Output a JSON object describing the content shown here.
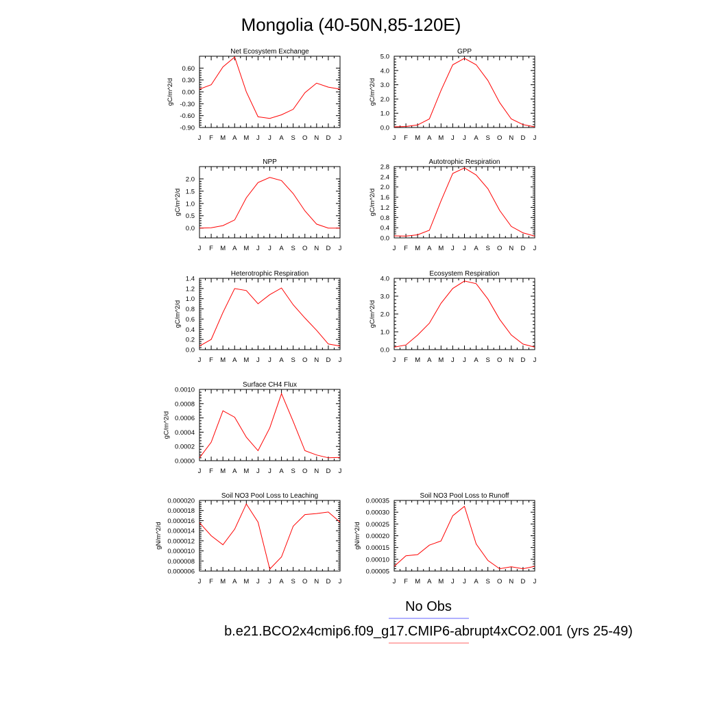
{
  "page": {
    "title": "Mongolia (40-50N,85-120E)"
  },
  "legend": {
    "items": [
      {
        "label": "No Obs",
        "color": "#8080ff"
      },
      {
        "label": "b.e21.BCO2x4cmip6.f09_g17.CMIP6-abrupt4xCO2.001 (yrs 25-49)",
        "color": "#ff8080"
      }
    ]
  },
  "chart_data": [
    {
      "type": "line",
      "title": "Net Ecosystem Exchange",
      "ylabel": "gC/m^2/d",
      "categories": [
        "J",
        "F",
        "M",
        "A",
        "M",
        "J",
        "J",
        "A",
        "S",
        "O",
        "N",
        "D",
        "J"
      ],
      "ylim": [
        -0.9,
        0.9
      ],
      "yticks": [
        -0.9,
        -0.6,
        -0.3,
        0.0,
        0.3,
        0.6
      ],
      "ytick_labels": [
        "-0.90",
        "-0.60",
        "-0.30",
        "0.00",
        "0.30",
        "0.60"
      ],
      "series": [
        {
          "color": "#ff0000",
          "values": [
            0.07,
            0.18,
            0.63,
            0.88,
            0.0,
            -0.63,
            -0.67,
            -0.58,
            -0.44,
            -0.02,
            0.22,
            0.12,
            0.07
          ]
        }
      ]
    },
    {
      "type": "line",
      "title": "GPP",
      "ylabel": "gC/m^2/d",
      "categories": [
        "J",
        "F",
        "M",
        "A",
        "M",
        "J",
        "J",
        "A",
        "S",
        "O",
        "N",
        "D",
        "J"
      ],
      "ylim": [
        0,
        5
      ],
      "yticks": [
        0,
        1,
        2,
        3,
        4,
        5
      ],
      "ytick_labels": [
        "0.0",
        "1.0",
        "2.0",
        "3.0",
        "4.0",
        "5.0"
      ],
      "series": [
        {
          "color": "#ff0000",
          "values": [
            0.05,
            0.07,
            0.18,
            0.6,
            2.6,
            4.4,
            4.85,
            4.4,
            3.3,
            1.75,
            0.6,
            0.2,
            0.05
          ]
        }
      ]
    },
    {
      "type": "line",
      "title": "NPP",
      "ylabel": "gC/m^2/d",
      "categories": [
        "J",
        "F",
        "M",
        "A",
        "M",
        "J",
        "J",
        "A",
        "S",
        "O",
        "N",
        "D",
        "J"
      ],
      "ylim": [
        -0.4,
        2.5
      ],
      "yticks": [
        0,
        0.5,
        1.0,
        1.5,
        2.0
      ],
      "ytick_labels": [
        "0.0",
        "0.5",
        "1.0",
        "1.5",
        "2.0"
      ],
      "series": [
        {
          "color": "#ff0000",
          "values": [
            0.0,
            0.01,
            0.1,
            0.33,
            1.23,
            1.85,
            2.06,
            1.93,
            1.4,
            0.7,
            0.16,
            0.0,
            0.0
          ]
        }
      ]
    },
    {
      "type": "line",
      "title": "Autotrophic Respiration",
      "ylabel": "gC/m^2/d",
      "categories": [
        "J",
        "F",
        "M",
        "A",
        "M",
        "J",
        "J",
        "A",
        "S",
        "O",
        "N",
        "D",
        "J"
      ],
      "ylim": [
        0,
        2.8
      ],
      "yticks": [
        0,
        0.4,
        0.8,
        1.2,
        1.6,
        2.0,
        2.4,
        2.8
      ],
      "ytick_labels": [
        "0.0",
        "0.4",
        "0.8",
        "1.2",
        "1.6",
        "2.0",
        "2.4",
        "2.8"
      ],
      "series": [
        {
          "color": "#ff0000",
          "values": [
            0.08,
            0.07,
            0.12,
            0.3,
            1.45,
            2.53,
            2.75,
            2.47,
            1.93,
            1.08,
            0.45,
            0.2,
            0.07
          ]
        }
      ]
    },
    {
      "type": "line",
      "title": "Heterotrophic Respiration",
      "ylabel": "gC/m^2/d",
      "categories": [
        "J",
        "F",
        "M",
        "A",
        "M",
        "J",
        "J",
        "A",
        "S",
        "O",
        "N",
        "D",
        "J"
      ],
      "ylim": [
        0,
        1.4
      ],
      "yticks": [
        0,
        0.2,
        0.4,
        0.6,
        0.8,
        1.0,
        1.2,
        1.4
      ],
      "ytick_labels": [
        "0.0",
        "0.2",
        "0.4",
        "0.6",
        "0.8",
        "1.0",
        "1.2",
        "1.4"
      ],
      "series": [
        {
          "color": "#ff0000",
          "values": [
            0.07,
            0.2,
            0.73,
            1.2,
            1.16,
            0.9,
            1.08,
            1.21,
            0.88,
            0.62,
            0.38,
            0.11,
            0.07
          ]
        }
      ]
    },
    {
      "type": "line",
      "title": "Ecosystem Respiration",
      "ylabel": "gC/m^2/d",
      "categories": [
        "J",
        "F",
        "M",
        "A",
        "M",
        "J",
        "J",
        "A",
        "S",
        "O",
        "N",
        "D",
        "J"
      ],
      "ylim": [
        0,
        4
      ],
      "yticks": [
        0,
        1,
        2,
        3,
        4
      ],
      "ytick_labels": [
        "0.0",
        "1.0",
        "2.0",
        "3.0",
        "4.0"
      ],
      "series": [
        {
          "color": "#ff0000",
          "values": [
            0.14,
            0.26,
            0.82,
            1.48,
            2.6,
            3.43,
            3.85,
            3.7,
            2.84,
            1.7,
            0.82,
            0.31,
            0.14
          ]
        }
      ]
    },
    {
      "type": "line",
      "title": "Surface CH4 Flux",
      "ylabel": "gC/m^2/d",
      "categories": [
        "J",
        "F",
        "M",
        "A",
        "M",
        "J",
        "J",
        "A",
        "S",
        "O",
        "N",
        "D",
        "J"
      ],
      "ylim": [
        0,
        0.001
      ],
      "yticks": [
        0,
        0.0002,
        0.0004,
        0.0006,
        0.0008,
        0.001
      ],
      "ytick_labels": [
        "0.0000",
        "0.0002",
        "0.0004",
        "0.0006",
        "0.0008",
        "0.0010"
      ],
      "series": [
        {
          "color": "#ff0000",
          "values": [
            4e-05,
            0.00026,
            0.0007,
            0.00061,
            0.00033,
            0.00014,
            0.00046,
            0.00094,
            0.00055,
            0.00014,
            8e-05,
            4e-05,
            4.5e-05
          ]
        }
      ]
    },
    {
      "type": "line",
      "title": "Soil NO3 Pool Loss to Leaching",
      "ylabel": "gN/m^2/d",
      "categories": [
        "J",
        "F",
        "M",
        "A",
        "M",
        "J",
        "J",
        "A",
        "S",
        "O",
        "N",
        "D",
        "J"
      ],
      "ylim": [
        6e-06,
        2e-05
      ],
      "yticks": [
        6e-06,
        8e-06,
        1e-05,
        1.2e-05,
        1.4e-05,
        1.6e-05,
        1.8e-05,
        2e-05
      ],
      "ytick_labels": [
        "0.000006",
        "0.000008",
        "0.000010",
        "0.000012",
        "0.000014",
        "0.000016",
        "0.000018",
        "0.000020"
      ],
      "series": [
        {
          "color": "#ff0000",
          "values": [
            1.56e-05,
            1.3e-05,
            1.12e-05,
            1.43e-05,
            1.93e-05,
            1.57e-05,
            6.4e-06,
            8.8e-06,
            1.49e-05,
            1.72e-05,
            1.74e-05,
            1.77e-05,
            1.57e-05
          ]
        }
      ]
    },
    {
      "type": "line",
      "title": "Soil NO3 Pool Loss to Runoff",
      "ylabel": "gN/m^2/d",
      "categories": [
        "J",
        "F",
        "M",
        "A",
        "M",
        "J",
        "J",
        "A",
        "S",
        "O",
        "N",
        "D",
        "J"
      ],
      "ylim": [
        5e-05,
        0.00035
      ],
      "yticks": [
        5e-05,
        0.0001,
        0.00015,
        0.0002,
        0.00025,
        0.0003,
        0.00035
      ],
      "ytick_labels": [
        "0.00005",
        "0.00010",
        "0.00015",
        "0.00020",
        "0.00025",
        "0.00030",
        "0.00035"
      ],
      "series": [
        {
          "color": "#ff0000",
          "values": [
            7e-05,
            0.000115,
            0.00012,
            0.00016,
            0.000178,
            0.000285,
            0.000325,
            0.000165,
            9.5e-05,
            6e-05,
            6.8e-05,
            6e-05,
            7e-05
          ]
        }
      ]
    }
  ]
}
